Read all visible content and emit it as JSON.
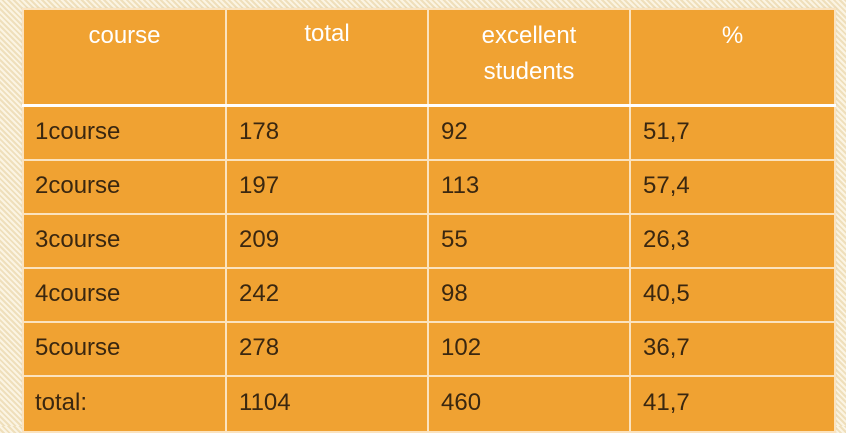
{
  "table": {
    "headers": [
      "course",
      "total",
      "excellent students",
      "%"
    ],
    "rows": [
      [
        "1course",
        "178",
        "92",
        "51,7"
      ],
      [
        "2course",
        "197",
        "113",
        "57,4"
      ],
      [
        "3course",
        "209",
        "55",
        "26,3"
      ],
      [
        "4course",
        "242",
        "98",
        "40,5"
      ],
      [
        "5course",
        "278",
        "102",
        "36,7"
      ],
      [
        "total:",
        "1104",
        "460",
        "41,7"
      ]
    ]
  },
  "colors": {
    "cell_fill": "#f0a232",
    "header_text": "#ffffff",
    "body_text": "#3a2710",
    "grid_line": "#fbe3bf",
    "background": "#f6ecd6"
  }
}
